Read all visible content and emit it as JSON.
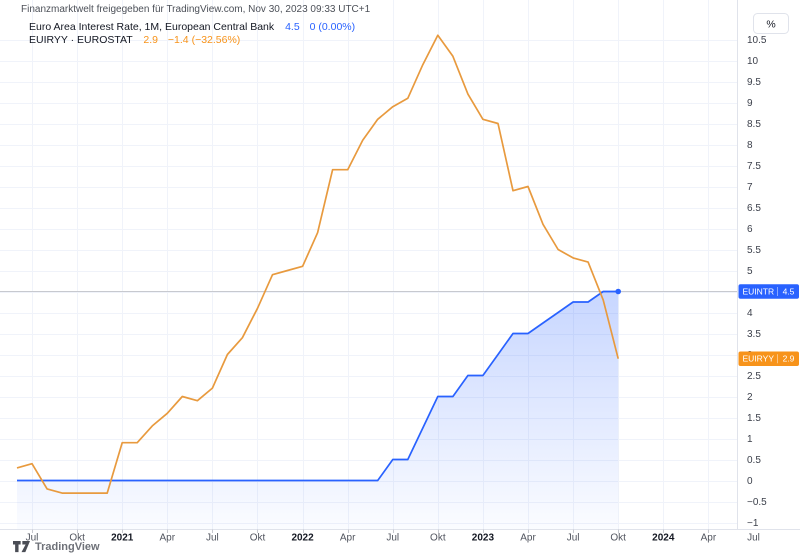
{
  "header": {
    "watermark": "Finanzmarktwelt freigegeben für TradingView.com, Nov 30, 2023 09:33 UTC+1"
  },
  "legend": {
    "rows": [
      {
        "title": "Euro Area Interest Rate, 1M, European Central Bank",
        "value": "4.5",
        "change": "0 (0.00%)",
        "color_key": "blue"
      },
      {
        "title": "EUIRYY · EUROSTAT",
        "value": "2.9",
        "change": "−1.4 (−32.56%)",
        "color_key": "orange"
      }
    ]
  },
  "footer": {
    "brand": "TradingView"
  },
  "colors": {
    "blue": "#2962FF",
    "orange": "#F7931A",
    "orange_line": "#E89A3E",
    "grid": "#F0F3FA",
    "axis_border": "#E0E3EB",
    "price_line": "#C7C9CF",
    "axis_text": "#3C404B",
    "time_text": "#50545E",
    "year_text": "#131722"
  },
  "chart_data": {
    "type": "line",
    "x_frequency": "monthly",
    "x_months": [
      "2020-06",
      "2020-07",
      "2020-08",
      "2020-09",
      "2020-10",
      "2020-11",
      "2020-12",
      "2021-01",
      "2021-02",
      "2021-03",
      "2021-04",
      "2021-05",
      "2021-06",
      "2021-07",
      "2021-08",
      "2021-09",
      "2021-10",
      "2021-11",
      "2021-12",
      "2022-01",
      "2022-02",
      "2022-03",
      "2022-04",
      "2022-05",
      "2022-06",
      "2022-07",
      "2022-08",
      "2022-09",
      "2022-10",
      "2022-11",
      "2022-12",
      "2023-01",
      "2023-02",
      "2023-03",
      "2023-04",
      "2023-05",
      "2023-06",
      "2023-07",
      "2023-08",
      "2023-09",
      "2023-10"
    ],
    "series": [
      {
        "id": "EUINTR",
        "name": "Euro Area Interest Rate, 1M, European Central Bank",
        "color_key": "blue",
        "style": "line-with-area-fill",
        "last_value": 4.5,
        "values": [
          0,
          0,
          0,
          0,
          0,
          0,
          0,
          0,
          0,
          0,
          0,
          0,
          0,
          0,
          0,
          0,
          0,
          0,
          0,
          0,
          0,
          0,
          0,
          0,
          0,
          0.5,
          0.5,
          1.25,
          2,
          2,
          2.5,
          2.5,
          3,
          3.5,
          3.5,
          3.75,
          4,
          4.25,
          4.25,
          4.5,
          4.5
        ]
      },
      {
        "id": "EUIRYY",
        "name": "EUIRYY · EUROSTAT",
        "color_key": "orange",
        "style": "line",
        "last_value": 2.9,
        "values": [
          0.3,
          0.4,
          -0.2,
          -0.3,
          -0.3,
          -0.3,
          -0.3,
          0.9,
          0.9,
          1.3,
          1.6,
          2,
          1.9,
          2.2,
          3,
          3.4,
          4.1,
          4.9,
          5,
          5.1,
          5.9,
          7.4,
          7.4,
          8.1,
          8.6,
          8.9,
          9.1,
          9.9,
          10.6,
          10.1,
          9.2,
          8.6,
          8.5,
          6.9,
          7,
          6.1,
          5.5,
          5.3,
          5.2,
          4.3,
          2.9
        ]
      }
    ],
    "y_axis": {
      "min": -1,
      "max": 10.5,
      "step": 0.5,
      "unit": "%",
      "hidden_label": 4.5
    },
    "price_line_value": 4.5,
    "badges": [
      {
        "label": "EUINTR",
        "value": "4.5",
        "numeric": 4.5,
        "color_key": "blue"
      },
      {
        "label": "EUIRYY",
        "value": "2.9",
        "numeric": 2.9,
        "color_key": "orange"
      }
    ],
    "time_ticks": [
      {
        "label": "Jul",
        "i": 1
      },
      {
        "label": "Okt",
        "i": 4
      },
      {
        "label": "2021",
        "i": 7,
        "bold": true
      },
      {
        "label": "Apr",
        "i": 10
      },
      {
        "label": "Jul",
        "i": 13
      },
      {
        "label": "Okt",
        "i": 16
      },
      {
        "label": "2022",
        "i": 19,
        "bold": true
      },
      {
        "label": "Apr",
        "i": 22
      },
      {
        "label": "Jul",
        "i": 25
      },
      {
        "label": "Okt",
        "i": 28
      },
      {
        "label": "2023",
        "i": 31,
        "bold": true
      },
      {
        "label": "Apr",
        "i": 34
      },
      {
        "label": "Jul",
        "i": 37
      },
      {
        "label": "Okt",
        "i": 40
      },
      {
        "label": "2024",
        "i": 43,
        "bold": true
      },
      {
        "label": "Apr",
        "i": 46
      },
      {
        "label": "Jul",
        "i": 49
      }
    ],
    "grid": true,
    "legend_position": "top-left"
  }
}
